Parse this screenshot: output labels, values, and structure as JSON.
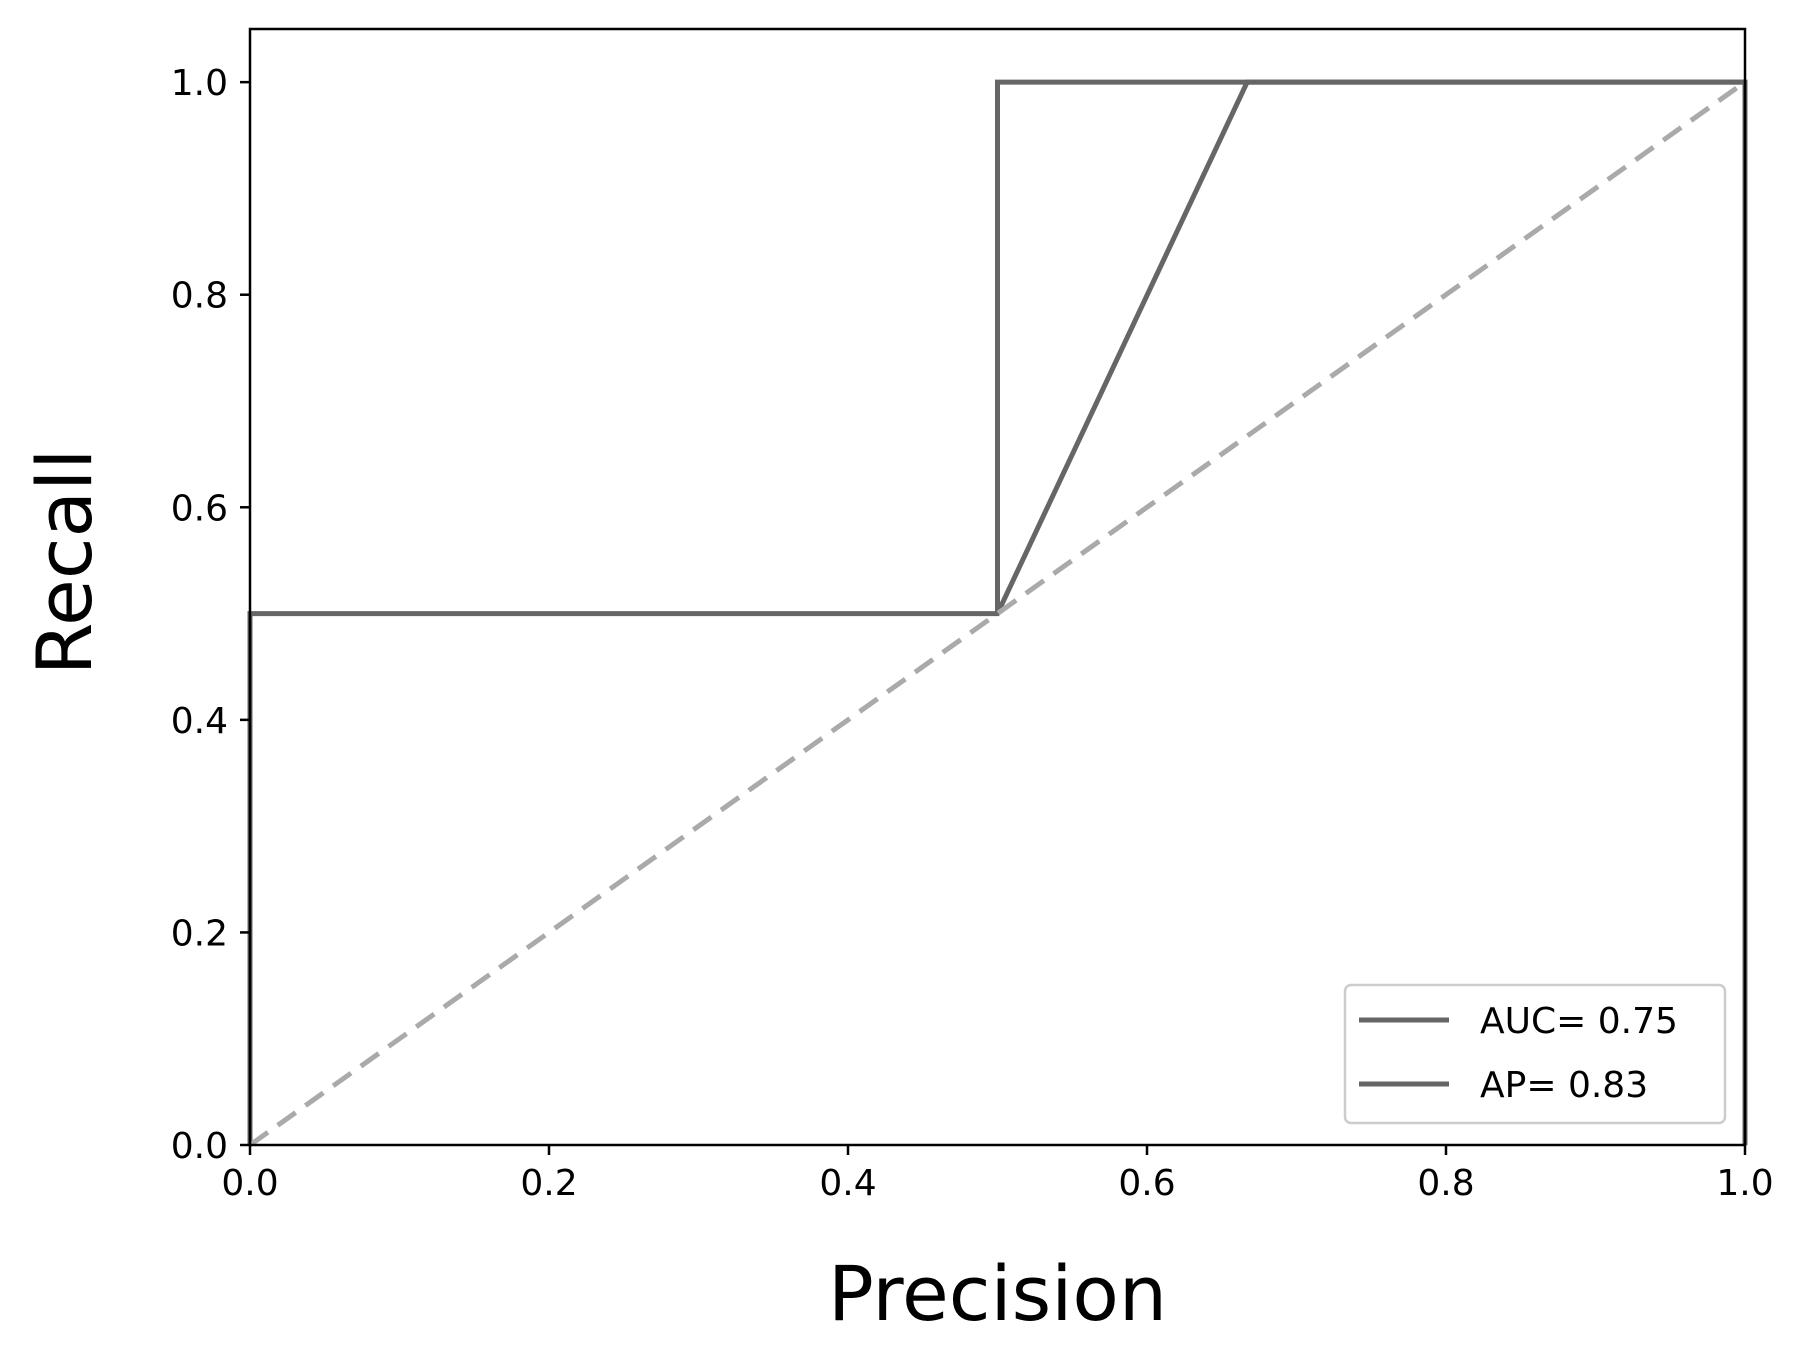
{
  "chart_data": {
    "type": "line",
    "title": "",
    "xlabel": "Precision",
    "ylabel": "Recall",
    "xlim": [
      0.0,
      1.0
    ],
    "ylim": [
      0.0,
      1.05
    ],
    "xticks": [
      "0.0",
      "0.2",
      "0.4",
      "0.6",
      "0.8",
      "1.0"
    ],
    "yticks": [
      "0.0",
      "0.2",
      "0.4",
      "0.6",
      "0.8",
      "1.0"
    ],
    "grid": false,
    "legend_position": "lower-right",
    "colors": {
      "series": "#666666",
      "baseline": "#aaaaaa"
    },
    "series": [
      {
        "name": "AUC= 0.75",
        "style": "solid",
        "x": [
          0.0,
          0.0,
          0.5,
          0.5,
          0.667,
          1.0
        ],
        "y": [
          0.0,
          0.5,
          0.5,
          0.5,
          1.0,
          1.0
        ]
      },
      {
        "name": "AP= 0.83",
        "style": "solid",
        "x": [
          0.5,
          0.5,
          1.0,
          1.0,
          1.0
        ],
        "y": [
          0.5,
          1.0,
          1.0,
          0.5,
          0.0
        ]
      },
      {
        "name": "",
        "style": "dashed",
        "x": [
          0.0,
          1.0
        ],
        "y": [
          0.0,
          1.0
        ]
      }
    ],
    "legend": [
      {
        "label": "AUC= 0.75"
      },
      {
        "label": "AP= 0.83"
      }
    ]
  }
}
